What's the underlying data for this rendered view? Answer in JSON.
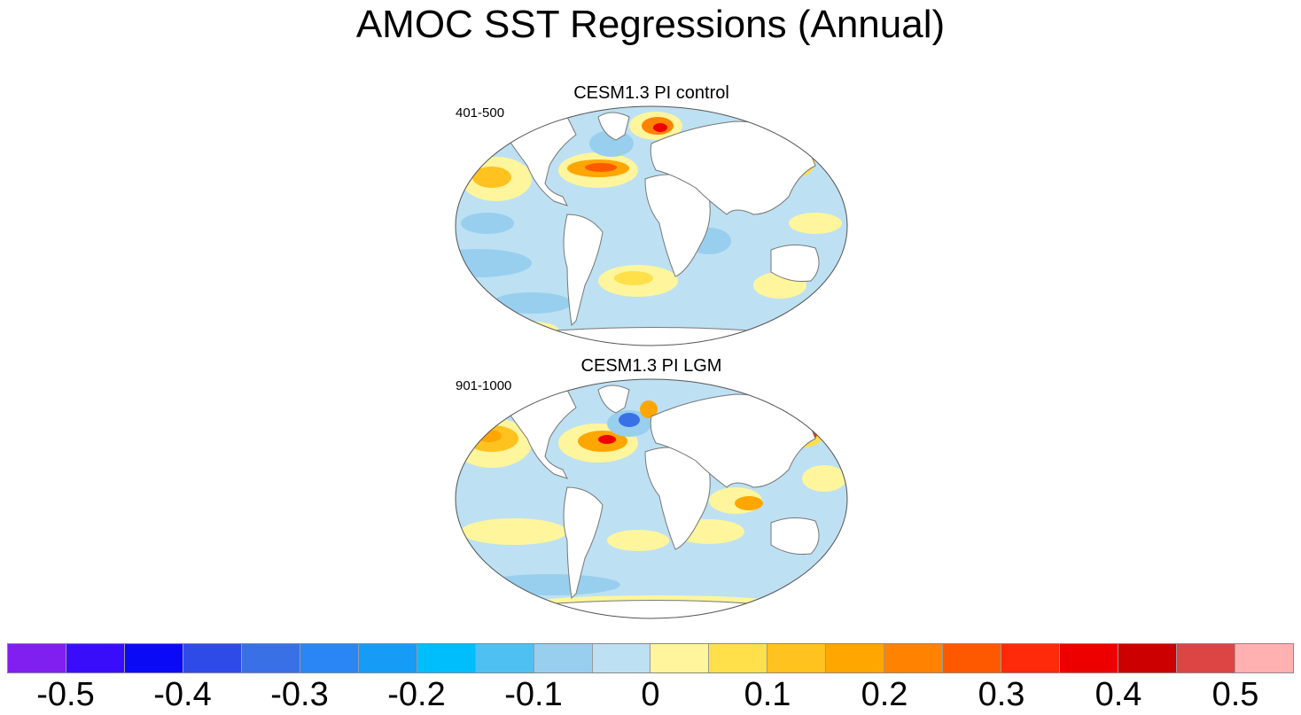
{
  "title": "AMOC SST Regressions (Annual)",
  "panels": [
    {
      "title": "CESM1.3 PI control",
      "subtitle": "401-500"
    },
    {
      "title": "CESM1.3 PI LGM",
      "subtitle": "901-1000"
    }
  ],
  "colorbar": {
    "colors": [
      "#7f1ff0",
      "#3a0dfa",
      "#0a0af7",
      "#2f4be7",
      "#3a70e6",
      "#2a86f4",
      "#169cf7",
      "#00bdfc",
      "#4fc0f2",
      "#98cfee",
      "#bde0f3",
      "#fff59c",
      "#ffe04a",
      "#ffc21e",
      "#ffa600",
      "#ff8200",
      "#ff5900",
      "#ff2a09",
      "#ee0000",
      "#cc0000",
      "#dd4444",
      "#ffb1b1"
    ],
    "labels": [
      "-0.5",
      "-0.4",
      "-0.3",
      "-0.2",
      "-0.1",
      "0",
      "0.1",
      "0.2",
      "0.3",
      "0.4",
      "0.5"
    ]
  },
  "ocean_colors": {
    "neutral_cool": "#bde0f3",
    "cool": "#98cfee",
    "warm": "#fff59c",
    "hot": "#ffa600",
    "very_hot": "#ee0000"
  }
}
